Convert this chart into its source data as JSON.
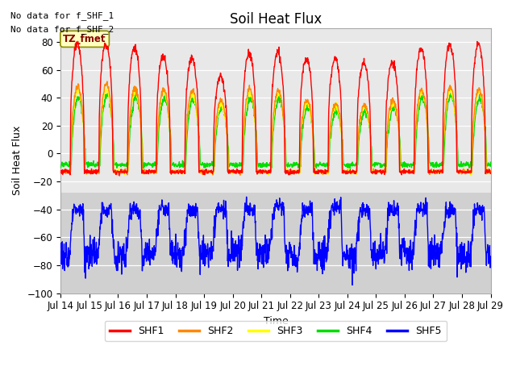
{
  "title": "Soil Heat Flux",
  "xlabel": "Time",
  "ylabel": "Soil Heat Flux",
  "ylim": [
    -100,
    90
  ],
  "xlim": [
    0,
    360
  ],
  "annotation1": "No data for f_SHF_1",
  "annotation2": "No data for f_SHF_2",
  "box_label": "TZ_fmet",
  "colors": {
    "SHF1": "#ff0000",
    "SHF2": "#ff8800",
    "SHF3": "#ffff00",
    "SHF4": "#00dd00",
    "SHF5": "#0000ff"
  },
  "legend": [
    "SHF1",
    "SHF2",
    "SHF3",
    "SHF4",
    "SHF5"
  ],
  "xtick_labels": [
    "Jul 14",
    "Jul 15",
    "Jul 16",
    "Jul 17",
    "Jul 18",
    "Jul 19",
    "Jul 20",
    "Jul 21",
    "Jul 22",
    "Jul 23",
    "Jul 24",
    "Jul 25",
    "Jul 26",
    "Jul 27",
    "Jul 28",
    "Jul 29"
  ],
  "xtick_pos": [
    0,
    24,
    48,
    72,
    96,
    120,
    144,
    168,
    192,
    216,
    240,
    264,
    288,
    312,
    336,
    360
  ],
  "background_bands": [
    {
      "ymin": -28,
      "ymax": 90,
      "color": "#e8e8e8"
    },
    {
      "ymin": -100,
      "ymax": -28,
      "color": "#d0d0d0"
    }
  ],
  "grid_yticks": [
    -100,
    -80,
    -60,
    -40,
    -20,
    0,
    20,
    40,
    60,
    80
  ],
  "grid_color": "#ffffff",
  "yticks": [
    -100,
    -80,
    -60,
    -40,
    -20,
    0,
    20,
    40,
    60,
    80
  ],
  "day_amplitudes_shf1": [
    78,
    78,
    76,
    70,
    68,
    55,
    72,
    72,
    68,
    68,
    65,
    65,
    75,
    78,
    78,
    78
  ],
  "day_amplitudes_shf2": [
    48,
    50,
    47,
    46,
    45,
    38,
    46,
    45,
    38,
    36,
    35,
    38,
    46,
    48,
    46,
    46
  ],
  "day_amplitudes_shf3": [
    45,
    46,
    44,
    44,
    43,
    35,
    44,
    43,
    36,
    34,
    33,
    36,
    44,
    46,
    44,
    44
  ],
  "day_amplitudes_shf4": [
    40,
    42,
    40,
    40,
    39,
    32,
    40,
    39,
    33,
    31,
    30,
    33,
    40,
    42,
    40,
    40
  ]
}
